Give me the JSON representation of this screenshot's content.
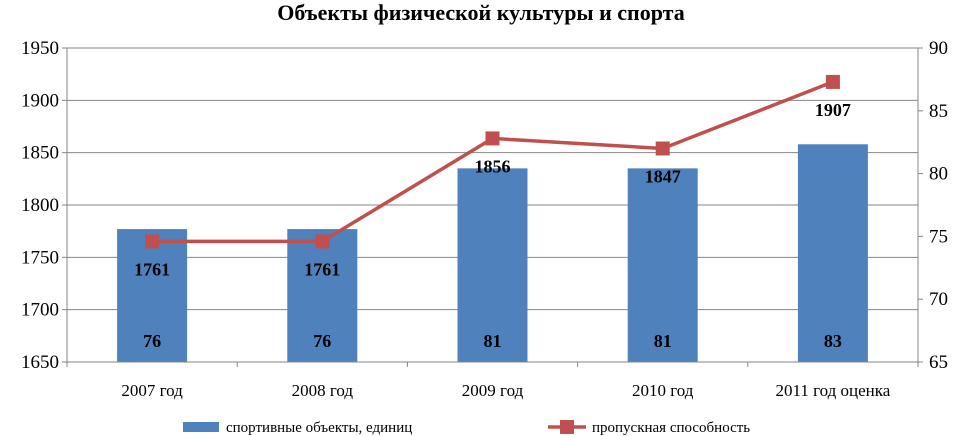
{
  "chart_data": {
    "type": "bar+line",
    "title": "Объекты физической культуры и спорта",
    "categories": [
      "2007 год",
      "2008 год",
      "2009 год",
      "2010 год",
      "2011 год оценка"
    ],
    "series": [
      {
        "name": "спортивные объекты, единиц",
        "kind": "bar",
        "axis": "left",
        "values": [
          1777,
          1777,
          1835,
          1835,
          1858
        ],
        "labels": [
          "76",
          "76",
          "81",
          "81",
          "83"
        ],
        "color": "#4F81BD"
      },
      {
        "name": "пропускная способность",
        "kind": "line",
        "axis": "right",
        "values": [
          74.6,
          74.6,
          82.8,
          82.0,
          87.3
        ],
        "labels": [
          "1761",
          "1761",
          "1856",
          "1847",
          "1907"
        ],
        "color": "#C0504D"
      }
    ],
    "y_left": {
      "min": 1650,
      "max": 1950,
      "ticks": [
        1650,
        1700,
        1750,
        1800,
        1850,
        1900,
        1950
      ]
    },
    "y_right": {
      "min": 65,
      "max": 90,
      "ticks": [
        65,
        70,
        75,
        80,
        85,
        90
      ]
    },
    "grid": true,
    "legend_position": "bottom"
  }
}
